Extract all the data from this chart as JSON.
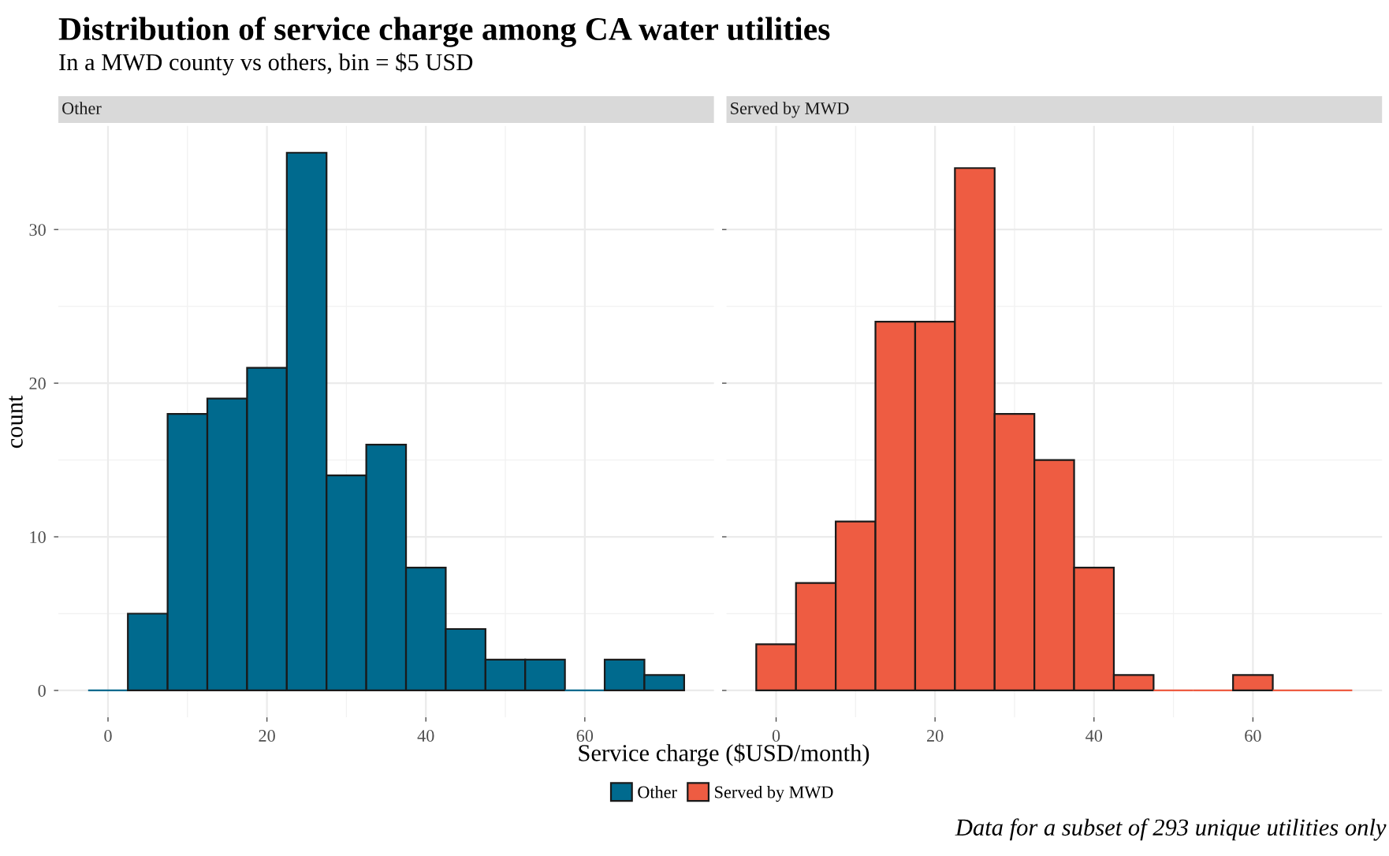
{
  "chart_data": [
    {
      "type": "histogram",
      "title": "Distribution of service charge among CA water utilities",
      "subtitle": "In a MWD county vs others, bin = $5 USD",
      "xlabel": "Service charge ($USD/month)",
      "ylabel": "count",
      "annotations": [
        "Other",
        "Data for a subset of 293 unique utilities only"
      ],
      "bins": [
        -2.5,
        2.5,
        7.5,
        12.5,
        17.5,
        22.5,
        27.5,
        32.5,
        37.5,
        42.5,
        47.5,
        52.5,
        57.5,
        62.5,
        67.5,
        72.5
      ],
      "series": [
        {
          "name": "Other",
          "color": "#006a8e",
          "values": [
            0,
            5,
            18,
            19,
            21,
            35,
            14,
            16,
            8,
            4,
            2,
            2,
            0,
            2,
            1
          ]
        }
      ],
      "xlim": [
        -6.25,
        76.25
      ],
      "ylim": [
        -1.75,
        36.75
      ],
      "xticks": [
        0,
        20,
        40,
        60
      ],
      "yticks": [
        0,
        10,
        20,
        30
      ],
      "grid": true,
      "legend": "bottom"
    },
    {
      "type": "histogram",
      "annotations": [
        "Served by MWD"
      ],
      "bins": [
        -2.5,
        2.5,
        7.5,
        12.5,
        17.5,
        22.5,
        27.5,
        32.5,
        37.5,
        42.5,
        47.5,
        52.5,
        57.5,
        62.5,
        67.5,
        72.5
      ],
      "series": [
        {
          "name": "Served by MWD",
          "color": "#ee5c42",
          "values": [
            3,
            7,
            11,
            24,
            24,
            34,
            18,
            15,
            8,
            1,
            0,
            0,
            1,
            0,
            0
          ]
        }
      ],
      "xlim": [
        -6.25,
        76.25
      ],
      "ylim": [
        -1.75,
        36.75
      ],
      "xticks": [
        0,
        20,
        40,
        60
      ],
      "yticks": [
        0,
        10,
        20,
        30
      ],
      "grid": true,
      "legend": "bottom",
      "tick_labels": "x"
    }
  ]
}
